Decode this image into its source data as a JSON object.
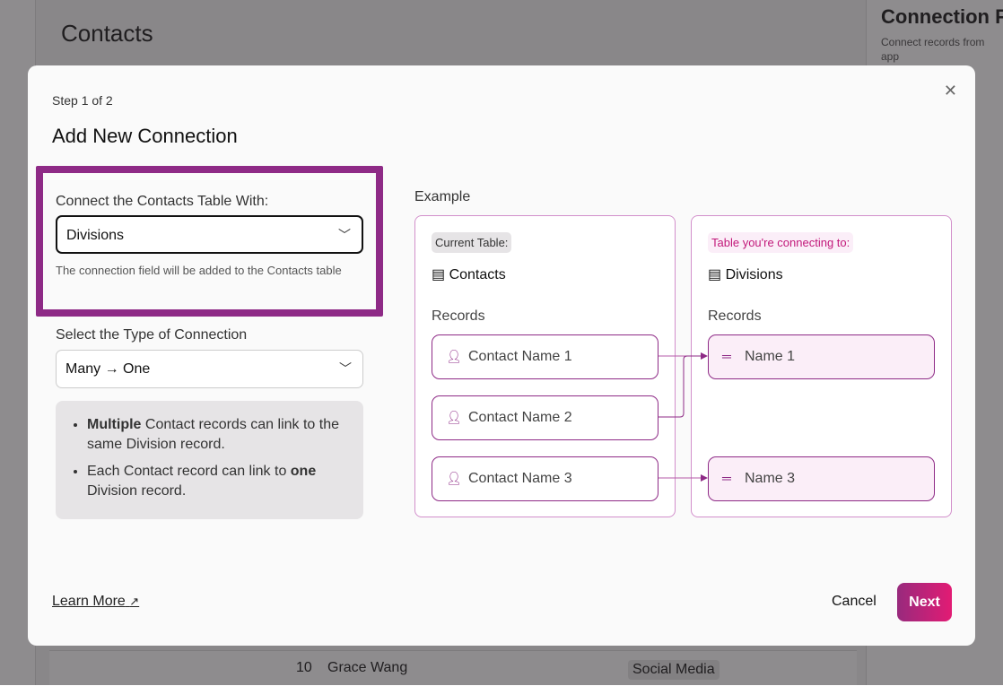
{
  "background": {
    "page_title": "Contacts",
    "panel_title": "Connection F",
    "panel_desc": "Connect records from",
    "panel_desc2": "app",
    "row": {
      "number": "10",
      "name": "Grace Wang",
      "tag": "Social Media"
    }
  },
  "modal": {
    "step": "Step 1 of 2",
    "title": "Add New Connection",
    "connect_label": "Connect the Contacts Table With:",
    "connect_value": "Divisions",
    "connect_help": "The connection field will be added to the Contacts table",
    "type_label": "Select the Type of Connection",
    "type_value": "Many → One",
    "info": [
      {
        "bold": "Multiple",
        "text": " Contact records can link to the same Division record."
      },
      {
        "pre": "Each Contact record can link to ",
        "bold": "one",
        "post": " Division record."
      }
    ],
    "example_label": "Example",
    "current": {
      "pill": "Current Table:",
      "table": "Contacts",
      "records_label": "Records",
      "records": [
        "Contact Name 1",
        "Contact Name 2",
        "Contact Name 3"
      ]
    },
    "target": {
      "pill": "Table you're connecting to:",
      "table": "Divisions",
      "records_label": "Records",
      "records": [
        "Name 1",
        "Name 3"
      ]
    },
    "learn_more": "Learn More",
    "cancel": "Cancel",
    "next": "Next"
  },
  "colors": {
    "accent": "#8e2a86",
    "next_gradient": [
      "#982a7d",
      "#e21b74"
    ]
  }
}
